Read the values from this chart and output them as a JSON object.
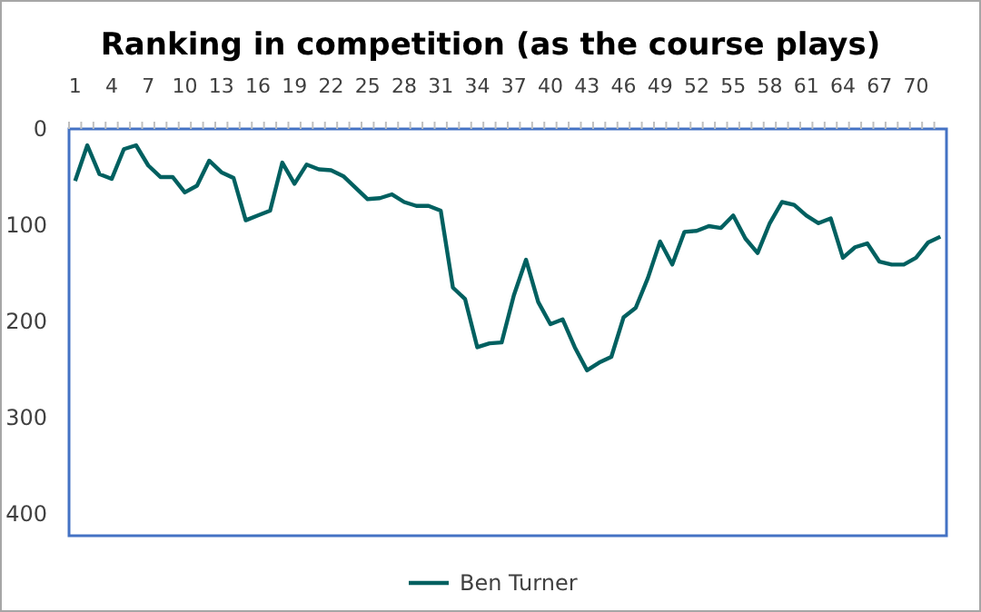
{
  "chart_data": {
    "type": "line",
    "title": "Ranking in competition (as the course plays)",
    "categories": [
      "1",
      null,
      null,
      "4",
      null,
      null,
      "7",
      null,
      null,
      "10",
      null,
      null,
      "13",
      null,
      null,
      "16",
      null,
      null,
      "19",
      null,
      null,
      "22",
      null,
      null,
      "25",
      null,
      null,
      "28",
      null,
      null,
      "31",
      null,
      null,
      "34",
      null,
      null,
      "37",
      null,
      null,
      "40",
      null,
      null,
      "43",
      null,
      null,
      "46",
      null,
      null,
      "49",
      null,
      null,
      "52",
      null,
      null,
      "55",
      null,
      null,
      "58",
      null,
      null,
      "61",
      null,
      null,
      "64",
      null,
      null,
      "67",
      null,
      null,
      "70",
      null,
      null
    ],
    "series": [
      {
        "name": "Ben Turner",
        "color": "#006060",
        "values": [
          54,
          17,
          47,
          52,
          21,
          17,
          38,
          50,
          50,
          66,
          59,
          33,
          45,
          51,
          95,
          90,
          85,
          35,
          57,
          37,
          42,
          43,
          49,
          61,
          73,
          72,
          68,
          76,
          80,
          80,
          85,
          165,
          177,
          227,
          223,
          222,
          173,
          136,
          180,
          203,
          198,
          227,
          251,
          243,
          237,
          196,
          186,
          155,
          117,
          141,
          107,
          106,
          101,
          103,
          90,
          114,
          129,
          98,
          76,
          79,
          90,
          98,
          93,
          134,
          123,
          119,
          138,
          141,
          141,
          134,
          118,
          112
        ]
      }
    ],
    "ylim": [
      423,
      0
    ],
    "yticks": [
      0,
      100,
      200,
      300,
      400
    ],
    "grid": false,
    "legend": "bottom",
    "marker": "none",
    "line_style": "solid"
  }
}
